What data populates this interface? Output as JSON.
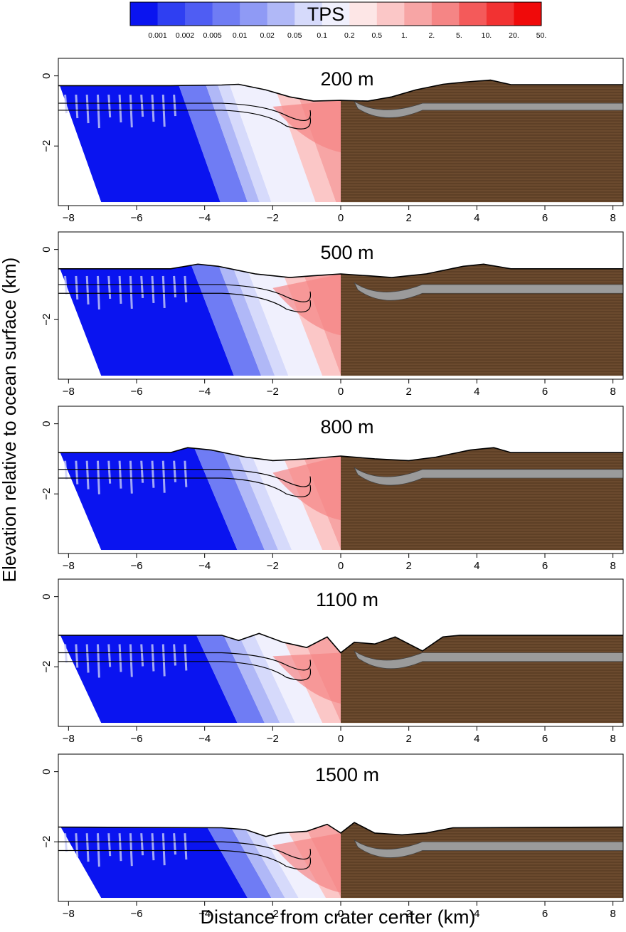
{
  "chart_data": {
    "type": "heatmap",
    "description_free": true,
    "colorbar": {
      "title": "TPS",
      "tick_labels": [
        "0.001",
        "0.002",
        "0.005",
        "0.01",
        "0.02",
        "0.05",
        "0.1",
        "0.2",
        "0.5",
        "1.",
        "2.",
        "5.",
        "10.",
        "20.",
        "50."
      ],
      "colors": [
        "#0a14f0",
        "#2f3ff2",
        "#4f5df3",
        "#6f7cf4",
        "#8f9af5",
        "#b0b8f7",
        "#d6dafb",
        "#f0f0fd",
        "#fde6e6",
        "#fbc7c7",
        "#f7a5a5",
        "#f58585",
        "#f45a5a",
        "#f23232",
        "#f00a0a"
      ]
    },
    "xlabel": "Distance from crater center (km)",
    "ylabel": "Elevation relative to ocean surface (km)",
    "xlim": [
      -8.3,
      8.3
    ],
    "ylim": [
      -3.7,
      0.5
    ],
    "xticks": [
      -8,
      -6,
      -4,
      -2,
      0,
      2,
      4,
      6,
      8
    ],
    "yticks": [
      0,
      -2
    ],
    "panels": [
      {
        "title": "200 m",
        "surface": [
          [
            -8.3,
            -0.28
          ],
          [
            -5,
            -0.28
          ],
          [
            -3.5,
            -0.26
          ],
          [
            -3,
            -0.24
          ],
          [
            -2.2,
            -0.4
          ],
          [
            -1.5,
            -0.6
          ],
          [
            -0.8,
            -0.72
          ],
          [
            0,
            -0.7
          ],
          [
            0.8,
            -0.72
          ],
          [
            1.5,
            -0.6
          ],
          [
            2.2,
            -0.4
          ],
          [
            3,
            -0.24
          ],
          [
            3.6,
            -0.18
          ],
          [
            4.4,
            -0.12
          ],
          [
            5,
            -0.25
          ],
          [
            8.3,
            -0.25
          ]
        ],
        "horizon_1": -0.78,
        "horizon_2": -0.98,
        "tps_fronts": {
          "0.001": -4.8,
          "0.01": -4.0,
          "0.1": -3.3,
          "1.": -2.0
        }
      },
      {
        "title": "500 m",
        "surface": [
          [
            -8.3,
            -0.55
          ],
          [
            -5,
            -0.55
          ],
          [
            -4.2,
            -0.42
          ],
          [
            -3.6,
            -0.48
          ],
          [
            -2.5,
            -0.7
          ],
          [
            -1.5,
            -0.8
          ],
          [
            -0.8,
            -0.75
          ],
          [
            0,
            -0.7
          ],
          [
            0.8,
            -0.75
          ],
          [
            1.5,
            -0.8
          ],
          [
            2.5,
            -0.7
          ],
          [
            3.6,
            -0.48
          ],
          [
            4.2,
            -0.42
          ],
          [
            5,
            -0.55
          ],
          [
            8.3,
            -0.55
          ]
        ],
        "horizon_1": -1.0,
        "horizon_2": -1.25,
        "tps_fronts": {
          "0.001": -4.4,
          "0.01": -3.6,
          "0.1": -2.8,
          "1.": -1.8
        }
      },
      {
        "title": "800 m",
        "surface": [
          [
            -8.3,
            -0.82
          ],
          [
            -5,
            -0.82
          ],
          [
            -4.5,
            -0.68
          ],
          [
            -3.8,
            -0.75
          ],
          [
            -2.8,
            -0.95
          ],
          [
            -2.0,
            -1.05
          ],
          [
            -1.0,
            -1.0
          ],
          [
            0,
            -0.92
          ],
          [
            1.0,
            -1.0
          ],
          [
            2.0,
            -1.05
          ],
          [
            2.8,
            -0.95
          ],
          [
            3.8,
            -0.75
          ],
          [
            4.5,
            -0.68
          ],
          [
            5,
            -0.82
          ],
          [
            8.3,
            -0.82
          ]
        ],
        "horizon_1": -1.3,
        "horizon_2": -1.55,
        "tps_fronts": {
          "0.001": -4.3,
          "0.01": -3.5,
          "0.1": -2.7,
          "1.": -1.8
        }
      },
      {
        "title": "1100 m",
        "surface": [
          [
            -8.3,
            -1.1
          ],
          [
            -3.5,
            -1.1
          ],
          [
            -3,
            -1.25
          ],
          [
            -2.4,
            -1.05
          ],
          [
            -1.7,
            -1.3
          ],
          [
            -1.0,
            -1.45
          ],
          [
            -0.4,
            -1.15
          ],
          [
            0,
            -1.6
          ],
          [
            0.4,
            -1.3
          ],
          [
            1.0,
            -1.35
          ],
          [
            1.6,
            -1.15
          ],
          [
            2.4,
            -1.55
          ],
          [
            3,
            -1.15
          ],
          [
            3.5,
            -1.1
          ],
          [
            8.3,
            -1.1
          ]
        ],
        "horizon_1": -1.6,
        "horizon_2": -1.85,
        "tps_fronts": {
          "0.001": -4.3,
          "0.01": -3.5,
          "0.1": -2.6,
          "1.": -1.8
        }
      },
      {
        "title": "1500 m",
        "surface": [
          [
            -8.3,
            -1.58
          ],
          [
            -3.5,
            -1.6
          ],
          [
            -2.8,
            -1.65
          ],
          [
            -2.2,
            -1.85
          ],
          [
            -1.8,
            -1.75
          ],
          [
            -1.0,
            -1.7
          ],
          [
            -0.4,
            -1.5
          ],
          [
            0,
            -1.75
          ],
          [
            0.4,
            -1.45
          ],
          [
            1.0,
            -1.75
          ],
          [
            1.8,
            -1.8
          ],
          [
            2.5,
            -1.75
          ],
          [
            3.3,
            -1.6
          ],
          [
            8.3,
            -1.58
          ]
        ],
        "horizon_1": -2.0,
        "horizon_2": -2.25,
        "tps_fronts": {
          "0.001": -4.0,
          "0.01": -3.3,
          "0.1": -2.5,
          "1.": -1.7
        }
      }
    ]
  }
}
